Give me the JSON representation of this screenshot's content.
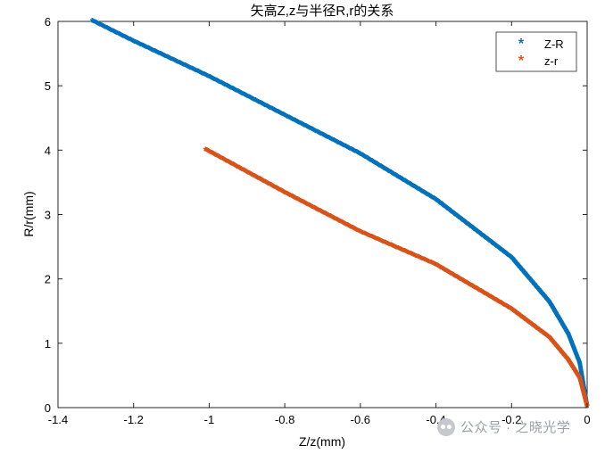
{
  "chart_data": {
    "type": "scatter",
    "title": "矢高Z,z与半径R,r的关系",
    "xlabel": "Z/z(mm)",
    "ylabel": "R/r(mm)",
    "xlim": [
      -1.4,
      0
    ],
    "ylim": [
      0,
      6
    ],
    "xticks": [
      -1.4,
      -1.2,
      -1,
      -0.8,
      -0.6,
      -0.4,
      -0.2,
      0
    ],
    "xtick_labels": [
      "-1.4",
      "-1.2",
      "-1",
      "-0.8",
      "-0.6",
      "-0.4",
      "-0.2",
      "0"
    ],
    "yticks": [
      0,
      1,
      2,
      3,
      4,
      5,
      6
    ],
    "ytick_labels": [
      "0",
      "1",
      "2",
      "3",
      "4",
      "5",
      "6"
    ],
    "grid": false,
    "legend_position": "top-right",
    "marker": "*",
    "series": [
      {
        "name": "Z-R",
        "color": "#0072BD",
        "y_max": 6,
        "x": [
          -1.31,
          -1.2,
          -1.0,
          -0.8,
          -0.6,
          -0.4,
          -0.2,
          -0.1,
          -0.05,
          -0.02,
          0
        ],
        "y": [
          6.0,
          5.68,
          5.13,
          4.53,
          3.93,
          3.22,
          2.32,
          1.63,
          1.13,
          0.68,
          0
        ]
      },
      {
        "name": "z-r",
        "color": "#D95319",
        "y_max": 4,
        "x": [
          -1.01,
          -0.8,
          -0.6,
          -0.4,
          -0.2,
          -0.1,
          -0.05,
          -0.02,
          0
        ],
        "y": [
          4.0,
          3.33,
          2.72,
          2.21,
          1.52,
          1.08,
          0.73,
          0.45,
          0
        ]
      }
    ]
  },
  "watermark": {
    "text": "公众号 · 之晓光学",
    "icon": "wechat-icon"
  }
}
